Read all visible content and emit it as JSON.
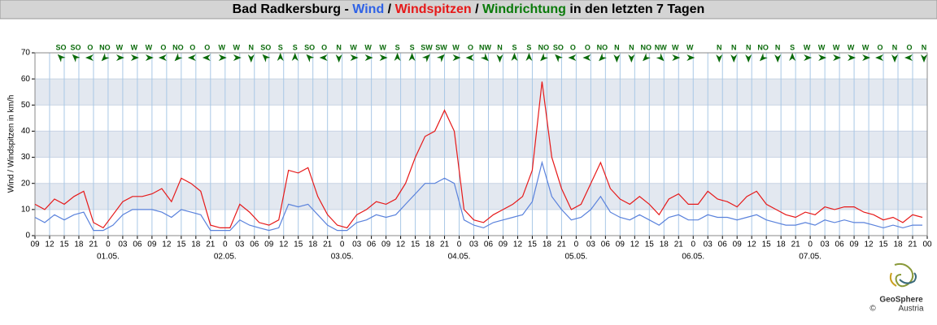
{
  "chart_data": {
    "type": "line",
    "title_parts": [
      {
        "text": "Bad Radkersburg - ",
        "color": "#000000"
      },
      {
        "text": "Wind",
        "color": "#2f62e6"
      },
      {
        "text": " / ",
        "color": "#000000"
      },
      {
        "text": "Windspitzen",
        "color": "#e61919"
      },
      {
        "text": " / ",
        "color": "#000000"
      },
      {
        "text": "Windrichtung",
        "color": "#0a7a0a"
      },
      {
        "text": " in den letzten 7 Tagen",
        "color": "#000000"
      }
    ],
    "y_label": "Wind / Windspitzen in km/h",
    "logo": [
      "GeoSphere",
      "Austria",
      "©"
    ],
    "ylim": [
      0,
      70
    ],
    "yticks": [
      0,
      10,
      20,
      30,
      40,
      50,
      60,
      70
    ],
    "bands": true,
    "grid": true,
    "xlim": [
      0,
      183
    ],
    "xticks": [
      {
        "value": 0,
        "label": "09"
      },
      {
        "value": 3,
        "label": "12"
      },
      {
        "value": 6,
        "label": "15"
      },
      {
        "value": 9,
        "label": "18"
      },
      {
        "value": 12,
        "label": "21"
      },
      {
        "value": 15,
        "label": "0"
      },
      {
        "value": 18,
        "label": "03"
      },
      {
        "value": 21,
        "label": "06"
      },
      {
        "value": 24,
        "label": "09"
      },
      {
        "value": 27,
        "label": "12"
      },
      {
        "value": 30,
        "label": "15"
      },
      {
        "value": 33,
        "label": "18"
      },
      {
        "value": 36,
        "label": "21"
      },
      {
        "value": 39,
        "label": "0"
      },
      {
        "value": 42,
        "label": "03"
      },
      {
        "value": 45,
        "label": "06"
      },
      {
        "value": 48,
        "label": "09"
      },
      {
        "value": 51,
        "label": "12"
      },
      {
        "value": 54,
        "label": "15"
      },
      {
        "value": 57,
        "label": "18"
      },
      {
        "value": 60,
        "label": "21"
      },
      {
        "value": 63,
        "label": "0"
      },
      {
        "value": 66,
        "label": "03"
      },
      {
        "value": 69,
        "label": "06"
      },
      {
        "value": 72,
        "label": "09"
      },
      {
        "value": 75,
        "label": "12"
      },
      {
        "value": 78,
        "label": "15"
      },
      {
        "value": 81,
        "label": "18"
      },
      {
        "value": 84,
        "label": "21"
      },
      {
        "value": 87,
        "label": "0"
      },
      {
        "value": 90,
        "label": "03"
      },
      {
        "value": 93,
        "label": "06"
      },
      {
        "value": 96,
        "label": "09"
      },
      {
        "value": 99,
        "label": "12"
      },
      {
        "value": 102,
        "label": "15"
      },
      {
        "value": 105,
        "label": "18"
      },
      {
        "value": 108,
        "label": "21"
      },
      {
        "value": 111,
        "label": "0"
      },
      {
        "value": 114,
        "label": "03"
      },
      {
        "value": 117,
        "label": "06"
      },
      {
        "value": 120,
        "label": "09"
      },
      {
        "value": 123,
        "label": "12"
      },
      {
        "value": 126,
        "label": "15"
      },
      {
        "value": 129,
        "label": "18"
      },
      {
        "value": 132,
        "label": "21"
      },
      {
        "value": 135,
        "label": "0"
      },
      {
        "value": 138,
        "label": "03"
      },
      {
        "value": 141,
        "label": "06"
      },
      {
        "value": 144,
        "label": "09"
      },
      {
        "value": 147,
        "label": "12"
      },
      {
        "value": 150,
        "label": "15"
      },
      {
        "value": 153,
        "label": "18"
      },
      {
        "value": 156,
        "label": "21"
      },
      {
        "value": 159,
        "label": "0"
      },
      {
        "value": 162,
        "label": "03"
      },
      {
        "value": 165,
        "label": "06"
      },
      {
        "value": 168,
        "label": "09"
      },
      {
        "value": 171,
        "label": "12"
      },
      {
        "value": 174,
        "label": "15"
      },
      {
        "value": 177,
        "label": "18"
      },
      {
        "value": 180,
        "label": "21"
      },
      {
        "value": 183,
        "label": "00"
      }
    ],
    "date_ticks": [
      {
        "value": 15,
        "label": "01.05."
      },
      {
        "value": 39,
        "label": "02.05."
      },
      {
        "value": 63,
        "label": "03.05."
      },
      {
        "value": 87,
        "label": "04.05."
      },
      {
        "value": 111,
        "label": "05.05."
      },
      {
        "value": 135,
        "label": "06.05."
      },
      {
        "value": 159,
        "label": "07.05."
      }
    ],
    "x": [
      0,
      2,
      4,
      6,
      8,
      10,
      12,
      14,
      16,
      18,
      20,
      22,
      24,
      26,
      28,
      30,
      32,
      34,
      36,
      38,
      40,
      42,
      44,
      46,
      48,
      50,
      52,
      54,
      56,
      58,
      60,
      62,
      64,
      66,
      68,
      70,
      72,
      74,
      76,
      78,
      80,
      82,
      84,
      86,
      88,
      90,
      92,
      94,
      96,
      98,
      100,
      102,
      104,
      106,
      108,
      110,
      112,
      114,
      116,
      118,
      120,
      122,
      124,
      126,
      128,
      130,
      132,
      134,
      136,
      138,
      140,
      142,
      144,
      146,
      148,
      150,
      152,
      154,
      156,
      158,
      160,
      162,
      164,
      166,
      168,
      170,
      172,
      174,
      176,
      178,
      180,
      182
    ],
    "series": [
      {
        "name": "Windspitzen",
        "color": "#e61919",
        "values": [
          12,
          10,
          14,
          12,
          15,
          17,
          5,
          3,
          8,
          13,
          15,
          15,
          16,
          18,
          13,
          22,
          20,
          17,
          4,
          3,
          3,
          12,
          9,
          5,
          4,
          6,
          25,
          24,
          26,
          15,
          8,
          4,
          3,
          8,
          10,
          13,
          12,
          14,
          20,
          30,
          38,
          40,
          48,
          40,
          10,
          6,
          5,
          8,
          10,
          12,
          15,
          25,
          59,
          30,
          18,
          10,
          12,
          20,
          28,
          18,
          14,
          12,
          15,
          12,
          8,
          14,
          16,
          12,
          12,
          17,
          14,
          13,
          11,
          15,
          17,
          12,
          10,
          8,
          7,
          9,
          8,
          11,
          10,
          11,
          11,
          9,
          8,
          6,
          7,
          5,
          8,
          7
        ]
      },
      {
        "name": "Wind",
        "color": "#5a82dc",
        "values": [
          7,
          5,
          8,
          6,
          8,
          9,
          2,
          2,
          4,
          8,
          10,
          10,
          10,
          9,
          7,
          10,
          9,
          8,
          2,
          2,
          2,
          6,
          4,
          3,
          2,
          3,
          12,
          11,
          12,
          8,
          4,
          2,
          2,
          5,
          6,
          8,
          7,
          8,
          12,
          16,
          20,
          20,
          22,
          20,
          6,
          4,
          3,
          5,
          6,
          7,
          8,
          13,
          28,
          15,
          10,
          6,
          7,
          10,
          15,
          9,
          7,
          6,
          8,
          6,
          4,
          7,
          8,
          6,
          6,
          8,
          7,
          7,
          6,
          7,
          8,
          6,
          5,
          4,
          4,
          5,
          4,
          6,
          5,
          6,
          5,
          5,
          4,
          3,
          4,
          3,
          4,
          4
        ]
      }
    ],
    "directions": {
      "color": "#0a6a0a",
      "x": [
        6,
        9,
        12,
        15,
        18,
        21,
        24,
        27,
        30,
        33,
        36,
        39,
        42,
        45,
        48,
        51,
        54,
        57,
        60,
        63,
        66,
        69,
        72,
        75,
        78,
        81,
        84,
        87,
        90,
        93,
        96,
        99,
        102,
        105,
        108,
        111,
        114,
        117,
        120,
        123,
        126,
        129,
        132,
        135,
        138,
        141,
        144,
        147,
        150,
        153,
        156,
        159,
        162,
        165,
        168,
        171,
        174,
        177,
        180,
        183
      ],
      "labels": [
        "SO",
        "SO",
        "O",
        "NO",
        "W",
        "W",
        "W",
        "O",
        "NO",
        "O",
        "O",
        "W",
        "W",
        "N",
        "SO",
        "S",
        "S",
        "SO",
        "O",
        "N",
        "W",
        "W",
        "W",
        "S",
        "S",
        "SW",
        "SW",
        "W",
        "O",
        "NW",
        "N",
        "S",
        "S",
        "NO",
        "SO",
        "O",
        "O",
        "NO",
        "N",
        "N",
        "NO",
        "NW",
        "W",
        "W",
        null,
        "N",
        "N",
        "N",
        "NO",
        "N",
        "S",
        "W",
        "W",
        "W",
        "W",
        "W",
        "O",
        "N",
        "O",
        "N"
      ]
    }
  }
}
